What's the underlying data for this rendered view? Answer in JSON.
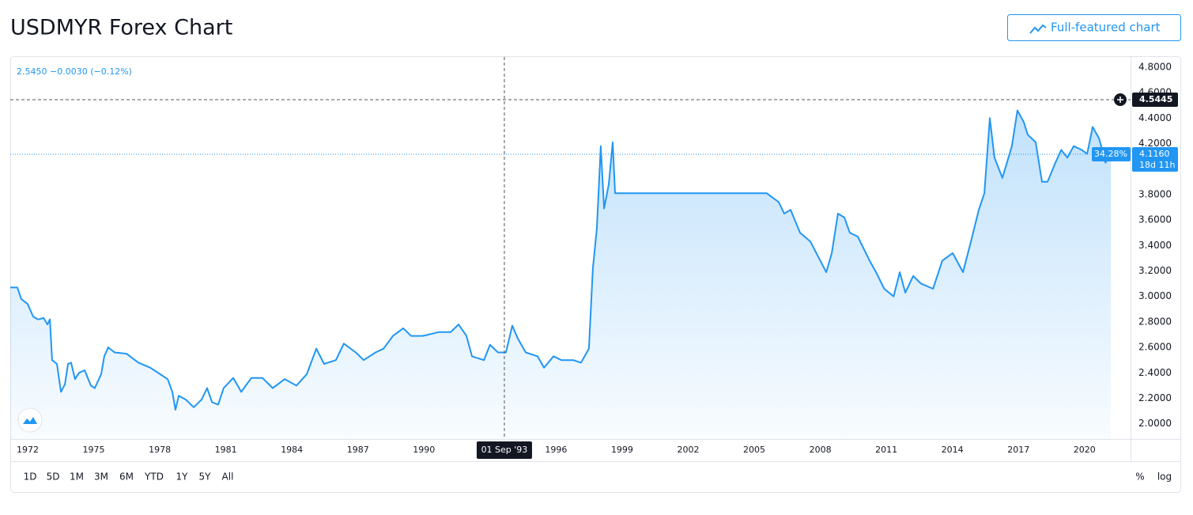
{
  "page_title": "USDMYR Forex Chart",
  "button": "Full-featured chart",
  "ranges": [
    "1D",
    "5D",
    "1M",
    "3M",
    "6M",
    "YTD",
    "1Y",
    "5Y",
    "All"
  ],
  "scale_options": [
    "%",
    "log"
  ],
  "chart_data": {
    "type": "area",
    "legend_text": "2.5450 −0.0030 (−0.12%)",
    "x": [
      1971.21,
      1971.53,
      1971.71,
      1972.0,
      1972.25,
      1972.47,
      1972.72,
      1972.9,
      1973.01,
      1973.11,
      1973.33,
      1973.51,
      1973.69,
      1973.83,
      1973.97,
      1974.15,
      1974.33,
      1974.59,
      1974.87,
      1975.05,
      1975.34,
      1975.48,
      1975.66,
      1975.95,
      1976.49,
      1977.03,
      1977.57,
      1978.1,
      1978.36,
      1978.57,
      1978.71,
      1978.86,
      1979.18,
      1979.54,
      1979.9,
      1980.15,
      1980.37,
      1980.65,
      1980.9,
      1981.34,
      1981.7,
      1982.16,
      1982.66,
      1983.13,
      1983.67,
      1984.21,
      1984.68,
      1985.11,
      1985.46,
      1986.0,
      1986.36,
      1986.9,
      1987.26,
      1987.8,
      1988.16,
      1988.59,
      1989.06,
      1989.41,
      1989.95,
      1990.67,
      1991.21,
      1991.57,
      1991.93,
      1992.18,
      1992.72,
      1993.0,
      1993.36,
      1993.72,
      1994.01,
      1994.26,
      1994.62,
      1995.16,
      1995.45,
      1995.88,
      1996.24,
      1996.78,
      1997.13,
      1997.49,
      1997.67,
      1997.85,
      1998.03,
      1998.18,
      1998.39,
      1998.57,
      1998.68,
      1999.47,
      2005.57,
      2006.11,
      2006.36,
      2006.65,
      2007.08,
      2007.55,
      2007.91,
      2008.27,
      2008.52,
      2008.8,
      2009.09,
      2009.34,
      2009.7,
      2010.24,
      2010.53,
      2010.9,
      2011.33,
      2011.61,
      2011.86,
      2012.22,
      2012.58,
      2013.12,
      2013.54,
      2014.01,
      2014.48,
      2014.84,
      2015.2,
      2015.45,
      2015.7,
      2015.91,
      2016.27,
      2016.7,
      2016.95,
      2017.24,
      2017.42,
      2017.78,
      2018.07,
      2018.32,
      2018.68,
      2018.94,
      2019.22,
      2019.51,
      2019.87,
      2020.12,
      2020.37,
      2020.66,
      2020.95,
      2021.2
    ],
    "series": [
      {
        "color": "#2196f3",
        "values": [
          3.07,
          3.07,
          2.98,
          2.94,
          2.84,
          2.82,
          2.83,
          2.78,
          2.82,
          2.5,
          2.47,
          2.25,
          2.31,
          2.47,
          2.48,
          2.35,
          2.4,
          2.42,
          2.3,
          2.28,
          2.39,
          2.53,
          2.6,
          2.56,
          2.55,
          2.48,
          2.44,
          2.38,
          2.35,
          2.25,
          2.11,
          2.22,
          2.19,
          2.13,
          2.19,
          2.28,
          2.17,
          2.15,
          2.28,
          2.36,
          2.25,
          2.36,
          2.36,
          2.28,
          2.35,
          2.3,
          2.39,
          2.59,
          2.47,
          2.5,
          2.63,
          2.56,
          2.5,
          2.56,
          2.59,
          2.69,
          2.75,
          2.69,
          2.69,
          2.72,
          2.72,
          2.78,
          2.69,
          2.53,
          2.5,
          2.62,
          2.56,
          2.56,
          2.77,
          2.67,
          2.56,
          2.53,
          2.44,
          2.53,
          2.5,
          2.5,
          2.48,
          2.59,
          3.22,
          3.53,
          4.18,
          3.69,
          3.88,
          4.21,
          3.81,
          3.81,
          3.81,
          3.74,
          3.65,
          3.68,
          3.5,
          3.43,
          3.31,
          3.19,
          3.34,
          3.65,
          3.62,
          3.5,
          3.47,
          3.28,
          3.19,
          3.06,
          3.0,
          3.19,
          3.03,
          3.16,
          3.1,
          3.06,
          3.28,
          3.34,
          3.19,
          3.43,
          3.68,
          3.81,
          4.4,
          4.09,
          3.93,
          4.18,
          4.46,
          4.37,
          4.27,
          4.21,
          3.9,
          3.9,
          4.05,
          4.15,
          4.09,
          4.18,
          4.15,
          4.12,
          4.33,
          4.24,
          4.05,
          4.116
        ]
      }
    ],
    "xlim": [
      1971.21,
      2022.09
    ],
    "ylim": [
      1.88,
      4.88
    ],
    "xticks": [
      1972,
      1975,
      1978,
      1981,
      1984,
      1987,
      1990,
      1996,
      1999,
      2002,
      2005,
      2008,
      2011,
      2014,
      2017,
      2020
    ],
    "yticks": [
      {
        "value": 2.0,
        "label": "2.0000"
      },
      {
        "value": 2.2,
        "label": "2.2000"
      },
      {
        "value": 2.4,
        "label": "2.4000"
      },
      {
        "value": 2.6,
        "label": "2.6000"
      },
      {
        "value": 2.8,
        "label": "2.8000"
      },
      {
        "value": 3.0,
        "label": "3.0000"
      },
      {
        "value": 3.2,
        "label": "3.2000"
      },
      {
        "value": 3.4,
        "label": "3.4000"
      },
      {
        "value": 3.6,
        "label": "3.6000"
      },
      {
        "value": 3.8,
        "label": "3.8000"
      },
      {
        "value": 4.0,
        "label": "4.0000"
      },
      {
        "value": 4.2,
        "label": "4.2000"
      },
      {
        "value": 4.4,
        "label": "4.4000"
      },
      {
        "value": 4.6,
        "label": "4.6000"
      },
      {
        "value": 4.8,
        "label": "4.8000"
      }
    ],
    "grid": false,
    "last_label": "4.1160",
    "change_label": "34.28%",
    "countdown": "18d 11h",
    "crosshair": {
      "x": 1993.65,
      "x_label": "01 Sep '93",
      "y": 4.5445
    }
  }
}
